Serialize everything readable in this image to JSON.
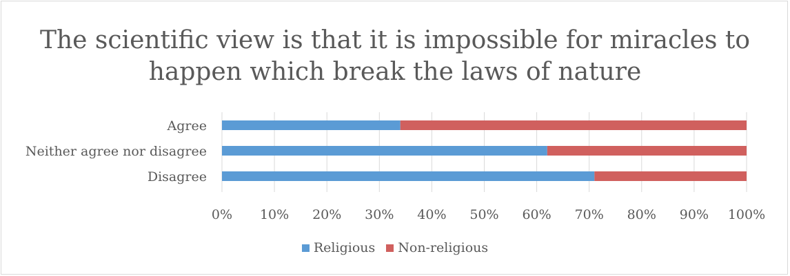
{
  "chart_data": {
    "type": "bar",
    "orientation": "horizontal",
    "stacked": "percent",
    "title": "The scientific view is that it is impossible for miracles to happen which break the laws of nature",
    "categories": [
      "Agree",
      "Neither agree nor disagree",
      "Disagree"
    ],
    "series": [
      {
        "name": "Religious",
        "color": "#5b9bd5",
        "values": [
          34,
          62,
          71
        ]
      },
      {
        "name": "Non-religious",
        "color": "#d0605e",
        "values": [
          66,
          38,
          29
        ]
      }
    ],
    "xlim": [
      0,
      100
    ],
    "x_ticks": [
      "0%",
      "10%",
      "20%",
      "30%",
      "40%",
      "50%",
      "60%",
      "70%",
      "80%",
      "90%",
      "100%"
    ],
    "grid": true,
    "legend_position": "bottom"
  }
}
